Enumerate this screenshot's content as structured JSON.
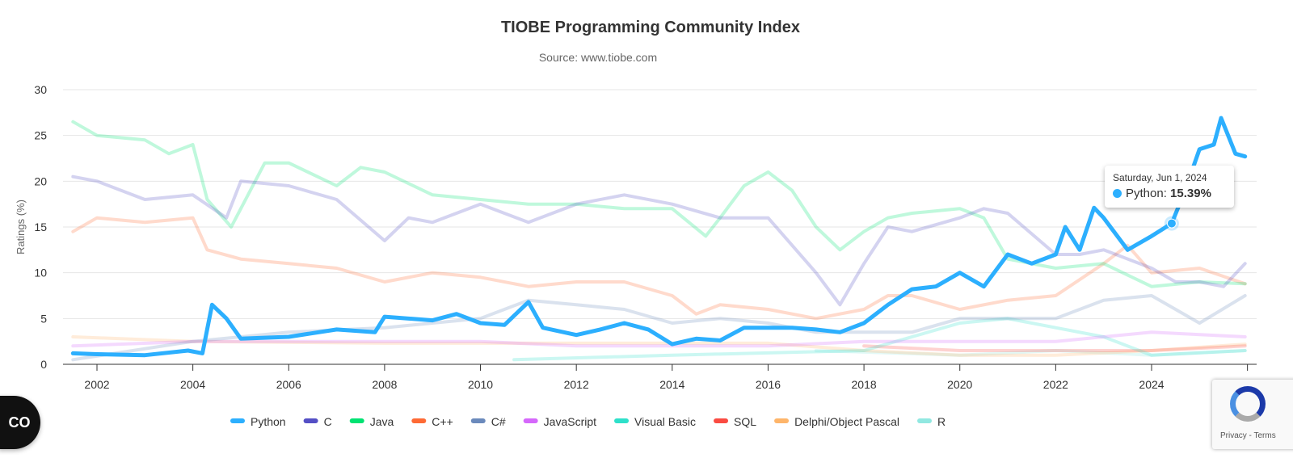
{
  "chart_data": {
    "type": "line",
    "title": "TIOBE Programming Community Index",
    "subtitle": "Source: www.tiobe.com",
    "xlabel": "",
    "ylabel": "Ratings (%)",
    "xlim": [
      2001.5,
      2026
    ],
    "ylim": [
      0,
      30
    ],
    "yticks": [
      0,
      5,
      10,
      15,
      20,
      25,
      30
    ],
    "xticks": [
      2002,
      2004,
      2006,
      2008,
      2010,
      2012,
      2014,
      2016,
      2018,
      2020,
      2022,
      2024
    ],
    "grid": true,
    "legend": "bottom",
    "highlighted_series": "Python",
    "series": [
      {
        "name": "Python",
        "color": "#2caffe",
        "x": [
          2001.5,
          2002,
          2003,
          2003.9,
          2004.2,
          2004.4,
          2004.7,
          2005,
          2006,
          2007,
          2007.8,
          2008,
          2009,
          2009.5,
          2010,
          2010.5,
          2011,
          2011.3,
          2012,
          2012.5,
          2013,
          2013.5,
          2014,
          2014.5,
          2015,
          2015.5,
          2016,
          2016.5,
          2017,
          2017.5,
          2018,
          2018.5,
          2019,
          2019.5,
          2020,
          2020.5,
          2021,
          2021.5,
          2022,
          2022.2,
          2022.5,
          2022.8,
          2023,
          2023.5,
          2024,
          2024.42,
          2024.7,
          2025,
          2025.3,
          2025.45,
          2025.75,
          2025.95
        ],
        "y": [
          1.2,
          1.1,
          1.0,
          1.5,
          1.2,
          6.5,
          5.0,
          2.8,
          3.0,
          3.8,
          3.5,
          5.2,
          4.8,
          5.5,
          4.5,
          4.3,
          6.8,
          4.0,
          3.2,
          3.8,
          4.5,
          3.8,
          2.2,
          2.8,
          2.6,
          4.0,
          4.0,
          4.0,
          3.8,
          3.5,
          4.5,
          6.5,
          8.2,
          8.5,
          10.0,
          8.5,
          12.0,
          11.0,
          12.0,
          15.0,
          12.5,
          17.1,
          16.0,
          12.5,
          14.0,
          15.39,
          19.0,
          23.5,
          24.0,
          26.9,
          23.0,
          22.7
        ]
      },
      {
        "name": "C",
        "color": "#544fc5",
        "x": [
          2001.5,
          2002,
          2003,
          2004,
          2004.7,
          2005,
          2006,
          2007,
          2008,
          2008.5,
          2009,
          2010,
          2011,
          2012,
          2013,
          2014,
          2015,
          2016,
          2017,
          2017.5,
          2018,
          2018.5,
          2019,
          2020,
          2020.5,
          2021,
          2022,
          2022.5,
          2023,
          2024,
          2024.5,
          2025,
          2025.5,
          2025.95
        ],
        "y": [
          20.5,
          20,
          18,
          18.5,
          16,
          20,
          19.5,
          18,
          13.5,
          16,
          15.5,
          17.5,
          15.5,
          17.5,
          18.5,
          17.5,
          16,
          16,
          10,
          6.5,
          11,
          15,
          14.5,
          16,
          17,
          16.5,
          12,
          12,
          12.5,
          10.5,
          9,
          9,
          8.5,
          11
        ]
      },
      {
        "name": "Java",
        "color": "#00e272",
        "x": [
          2001.5,
          2002,
          2003,
          2003.5,
          2004,
          2004.3,
          2004.8,
          2005,
          2005.5,
          2006,
          2007,
          2007.5,
          2008,
          2009,
          2010,
          2011,
          2012,
          2013,
          2014,
          2014.7,
          2015,
          2015.5,
          2016,
          2016.5,
          2017,
          2017.5,
          2018,
          2018.5,
          2019,
          2020,
          2020.5,
          2021,
          2022,
          2023,
          2024,
          2025,
          2025.95
        ],
        "y": [
          26.5,
          25,
          24.5,
          23,
          24,
          18,
          15,
          17,
          22,
          22,
          19.5,
          21.5,
          21,
          18.5,
          18,
          17.5,
          17.5,
          17,
          17,
          14,
          16,
          19.5,
          21,
          19,
          15,
          12.5,
          14.5,
          16,
          16.5,
          17,
          16,
          11.5,
          10.5,
          11,
          8.5,
          9,
          8.8
        ]
      },
      {
        "name": "C++",
        "color": "#fe6a35",
        "x": [
          2001.5,
          2002,
          2003,
          2004,
          2004.3,
          2005,
          2006,
          2007,
          2008,
          2009,
          2010,
          2011,
          2012,
          2013,
          2014,
          2014.5,
          2015,
          2016,
          2017,
          2018,
          2018.5,
          2019,
          2020,
          2021,
          2022,
          2023,
          2023.5,
          2024,
          2025,
          2025.95
        ],
        "y": [
          14.5,
          16,
          15.5,
          16,
          12.5,
          11.5,
          11,
          10.5,
          9,
          10,
          9.5,
          8.5,
          9,
          9,
          7.5,
          5.5,
          6.5,
          6,
          5,
          6,
          7.5,
          7.5,
          6,
          7,
          7.5,
          11,
          13,
          10,
          10.5,
          8.8
        ]
      },
      {
        "name": "C#",
        "color": "#6b8abc",
        "x": [
          2001.5,
          2004,
          2006,
          2008,
          2010,
          2011,
          2012,
          2013,
          2014,
          2015,
          2016,
          2017,
          2018,
          2019,
          2020,
          2021,
          2022,
          2023,
          2024,
          2024.5,
          2025,
          2025.95
        ],
        "y": [
          0.5,
          2.5,
          3.5,
          4,
          5,
          7,
          6.5,
          6,
          4.5,
          5,
          4.5,
          3.5,
          3.5,
          3.5,
          5,
          5,
          5,
          7,
          7.5,
          6,
          4.5,
          7.5
        ]
      },
      {
        "name": "JavaScript",
        "color": "#d568fb",
        "x": [
          2001.5,
          2004,
          2006,
          2008,
          2010,
          2012,
          2014,
          2016,
          2018,
          2020,
          2022,
          2024,
          2025.95
        ],
        "y": [
          2,
          2.5,
          2.5,
          2.5,
          2.5,
          2,
          2,
          2,
          2.5,
          2.5,
          2.5,
          3.5,
          3
        ]
      },
      {
        "name": "Visual Basic",
        "color": "#2ee0ca",
        "x": [
          2010.7,
          2014,
          2018,
          2020,
          2021,
          2022,
          2023,
          2024,
          2025.95
        ],
        "y": [
          0.5,
          1,
          1.5,
          4.5,
          5,
          4,
          3,
          1,
          1.5
        ]
      },
      {
        "name": "SQL",
        "color": "#fa4b42",
        "x": [
          2018,
          2020,
          2022,
          2024,
          2025.95
        ],
        "y": [
          2,
          1.5,
          1.5,
          1.5,
          2
        ]
      },
      {
        "name": "Delphi/Object Pascal",
        "color": "#feb56a",
        "x": [
          2001.5,
          2004,
          2008,
          2012,
          2016,
          2018,
          2020,
          2022,
          2024,
          2025.95
        ],
        "y": [
          3,
          2.5,
          2.3,
          2.3,
          2.3,
          1.5,
          1,
          1,
          1.5,
          2.2
        ]
      },
      {
        "name": "R",
        "color": "#91e8e1",
        "x": [
          2017,
          2020,
          2022,
          2024,
          2025.95
        ],
        "y": [
          1.5,
          1,
          1.5,
          1,
          1.5
        ]
      }
    ],
    "tooltip": {
      "date": "Saturday, Jun 1, 2024",
      "series": "Python",
      "label": "Python: ",
      "value": "15.39%",
      "x": 2024.42,
      "y": 15.39
    }
  },
  "overlays": {
    "badge": "CO",
    "recaptcha_text": "Privacy - Terms"
  }
}
